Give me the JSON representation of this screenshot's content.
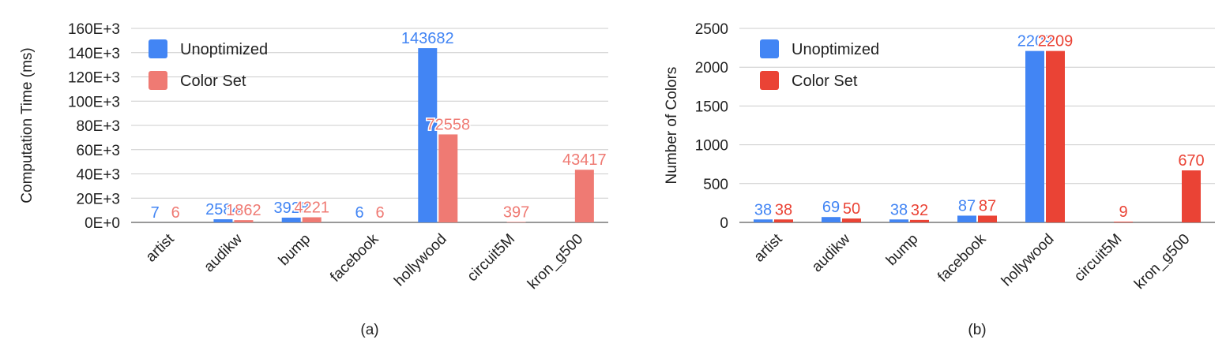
{
  "chart_data": [
    {
      "type": "bar",
      "caption": "(a)",
      "ylabel": "Computation Time (ms)",
      "xlabel": "",
      "ylim": [
        0,
        160000
      ],
      "yticks": [
        0,
        20000,
        40000,
        60000,
        80000,
        100000,
        120000,
        140000,
        160000
      ],
      "ytick_labels": [
        "0E+0",
        "20E+3",
        "40E+3",
        "60E+3",
        "80E+3",
        "100E+3",
        "120E+3",
        "140E+3",
        "160E+3"
      ],
      "grid": true,
      "legend_position": "top-left",
      "categories": [
        "artist",
        "audikw",
        "bump",
        "facebook",
        "hollywood",
        "circuit5M",
        "kron_g500"
      ],
      "series": [
        {
          "name": "Unoptimized",
          "color": "#4285f4",
          "values": [
            7,
            2584,
            3928,
            6,
            143682,
            null,
            null
          ],
          "labels": [
            "7",
            "2584",
            "3928",
            "6",
            "143682",
            "",
            ""
          ]
        },
        {
          "name": "Color Set",
          "color": "#ef7a73",
          "values": [
            6,
            1862,
            4221,
            6,
            72558,
            397,
            43417
          ],
          "labels": [
            "6",
            "1862",
            "4221",
            "6",
            "72558",
            "397",
            "43417"
          ]
        }
      ]
    },
    {
      "type": "bar",
      "caption": "(b)",
      "ylabel": "Number of Colors",
      "xlabel": "",
      "ylim": [
        0,
        2500
      ],
      "yticks": [
        0,
        500,
        1000,
        1500,
        2000,
        2500
      ],
      "ytick_labels": [
        "0",
        "500",
        "1000",
        "1500",
        "2000",
        "2500"
      ],
      "grid": true,
      "legend_position": "top-left",
      "categories": [
        "artist",
        "audikw",
        "bump",
        "facebook",
        "hollywood",
        "circuit5M",
        "kron_g500"
      ],
      "series": [
        {
          "name": "Unoptimized",
          "color": "#4285f4",
          "values": [
            38,
            69,
            38,
            87,
            2209,
            null,
            null
          ],
          "labels": [
            "38",
            "69",
            "38",
            "87",
            "2209",
            "",
            ""
          ]
        },
        {
          "name": "Color Set",
          "color": "#ea4335",
          "values": [
            38,
            50,
            32,
            87,
            2209,
            9,
            670
          ],
          "labels": [
            "38",
            "50",
            "32",
            "87",
            "2209",
            "9",
            "670"
          ]
        }
      ]
    }
  ]
}
